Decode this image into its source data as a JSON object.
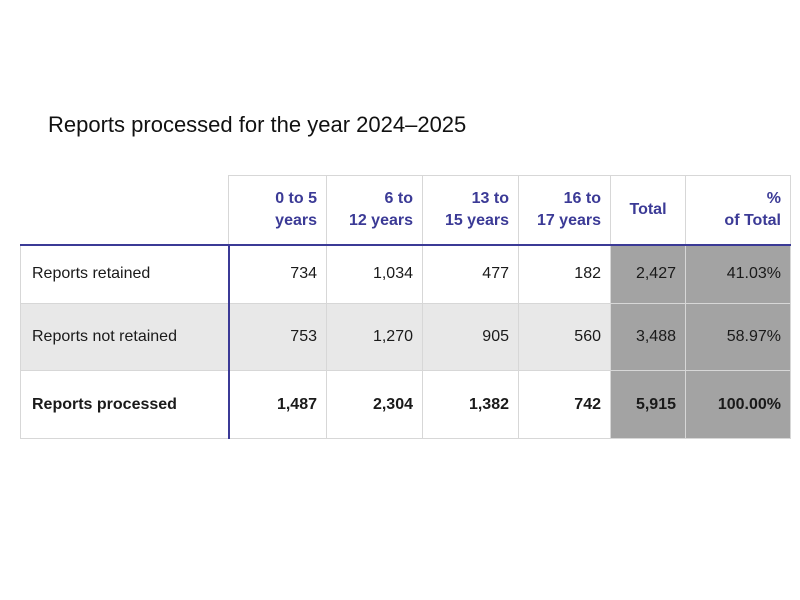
{
  "title": "Reports processed for the year 2024–2025",
  "table": {
    "headers": [
      {
        "line1": "0 to 5",
        "line2": "years"
      },
      {
        "line1": "6 to",
        "line2": "12 years"
      },
      {
        "line1": "13 to",
        "line2": "15 years"
      },
      {
        "line1": "16 to",
        "line2": "17 years"
      },
      {
        "line1": "Total",
        "line2": ""
      },
      {
        "line1": "%",
        "line2": "of Total"
      }
    ],
    "rows": [
      {
        "label": "Reports retained",
        "cells": [
          "734",
          "1,034",
          "477",
          "182",
          "2,427",
          "41.03%"
        ]
      },
      {
        "label": "Reports not retained",
        "cells": [
          "753",
          "1,270",
          "905",
          "560",
          "3,488",
          "58.97%"
        ]
      },
      {
        "label": "Reports processed",
        "cells": [
          "1,487",
          "2,304",
          "1,382",
          "742",
          "5,915",
          "100.00%"
        ]
      }
    ]
  },
  "colors": {
    "header_text": "#3b3a96",
    "row_stripe": "#e8e8e8",
    "total_shade": "#a3a3a3",
    "grid": "#d7d7d7"
  }
}
